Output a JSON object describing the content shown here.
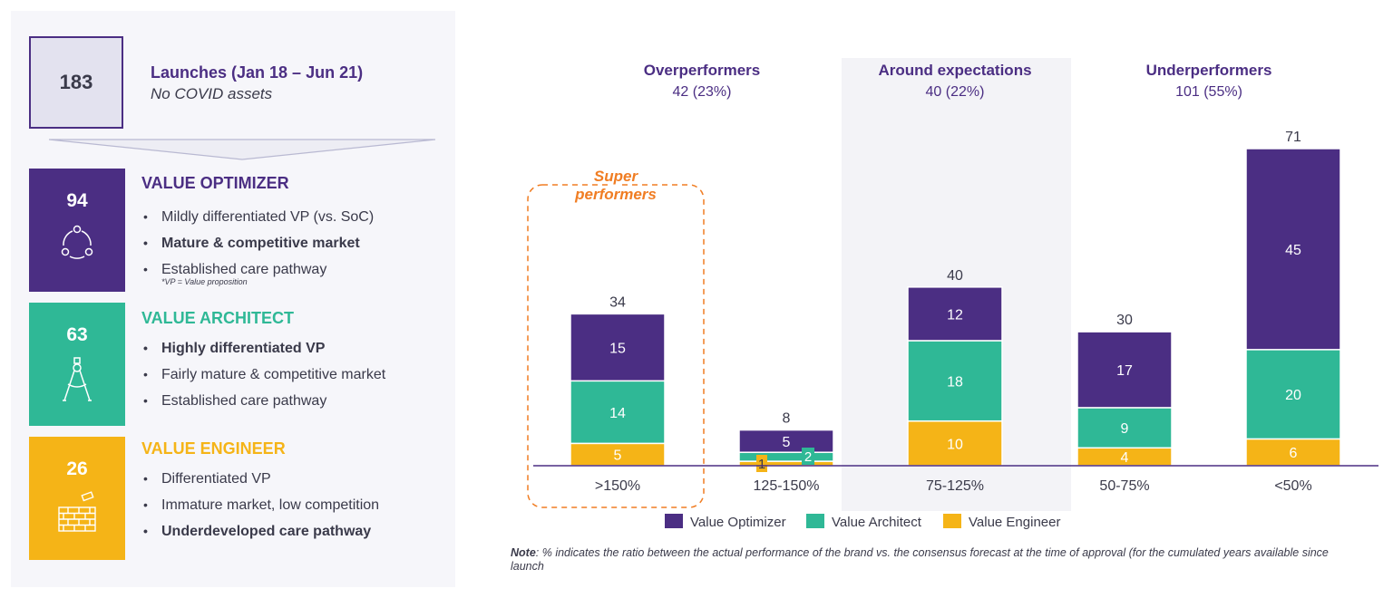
{
  "summary": {
    "total": "183",
    "title": "Launches (Jan 18 – Jun 21)",
    "subtitle": "No COVID assets"
  },
  "categories": [
    {
      "count": "94",
      "title": "VALUE OPTIMIZER",
      "color": "#4b2e83",
      "icon": "cycle-arrows-icon",
      "bullets": [
        {
          "text": "Mildly differentiated VP (vs. SoC)",
          "bold": false
        },
        {
          "text": "Mature & competitive market",
          "bold": true
        },
        {
          "text": "Established care pathway",
          "bold": false
        }
      ],
      "footnote": "*VP = Value proposition"
    },
    {
      "count": "63",
      "title": "VALUE ARCHITECT",
      "color": "#2fb896",
      "icon": "drafting-compass-icon",
      "bullets": [
        {
          "text": "Highly differentiated VP",
          "bold": true
        },
        {
          "text": "Fairly mature & competitive market",
          "bold": false
        },
        {
          "text": "Established care pathway",
          "bold": false
        }
      ]
    },
    {
      "count": "26",
      "title": "VALUE ENGINEER",
      "color": "#f5b417",
      "icon": "brick-wall-icon",
      "bullets": [
        {
          "text": "Differentiated VP",
          "bold": false
        },
        {
          "text": "Immature market, low competition",
          "bold": false
        },
        {
          "text": "Underdeveloped care pathway",
          "bold": true
        }
      ]
    }
  ],
  "chart_data": {
    "type": "bar",
    "stacked": true,
    "categories": [
      ">150%",
      "125-150%",
      "75-125%",
      "50-75%",
      "<50%"
    ],
    "series": [
      {
        "name": "Value Engineer",
        "color": "#f5b417",
        "values": [
          5,
          1,
          10,
          4,
          6
        ]
      },
      {
        "name": "Value Architect",
        "color": "#2fb896",
        "values": [
          14,
          2,
          18,
          9,
          20
        ]
      },
      {
        "name": "Value Optimizer",
        "color": "#4b2e83",
        "values": [
          15,
          5,
          12,
          17,
          45
        ]
      }
    ],
    "totals": [
      34,
      8,
      40,
      30,
      71
    ],
    "legend_order": [
      "Value Optimizer",
      "Value Architect",
      "Value Engineer"
    ],
    "legend_position": "bottom",
    "groups": [
      {
        "title": "Overperformers",
        "subtitle": "42 (23%)",
        "categories": [
          ">150%",
          "125-150%"
        ]
      },
      {
        "title": "Around expectations",
        "subtitle": "40 (22%)",
        "categories": [
          "75-125%"
        ],
        "shaded": true
      },
      {
        "title": "Underperformers",
        "subtitle": "101 (55%)",
        "categories": [
          "50-75%",
          "<50%"
        ]
      }
    ],
    "annotation": {
      "lines": [
        "Super",
        "performers"
      ],
      "category": ">150%",
      "color": "#f07d23"
    },
    "ylim": [
      0,
      71
    ]
  },
  "note": {
    "label": "Note",
    "text": ": % indicates the ratio between the actual performance of the brand vs. the consensus forecast at the time of approval (for the cumulated years available since launch"
  }
}
